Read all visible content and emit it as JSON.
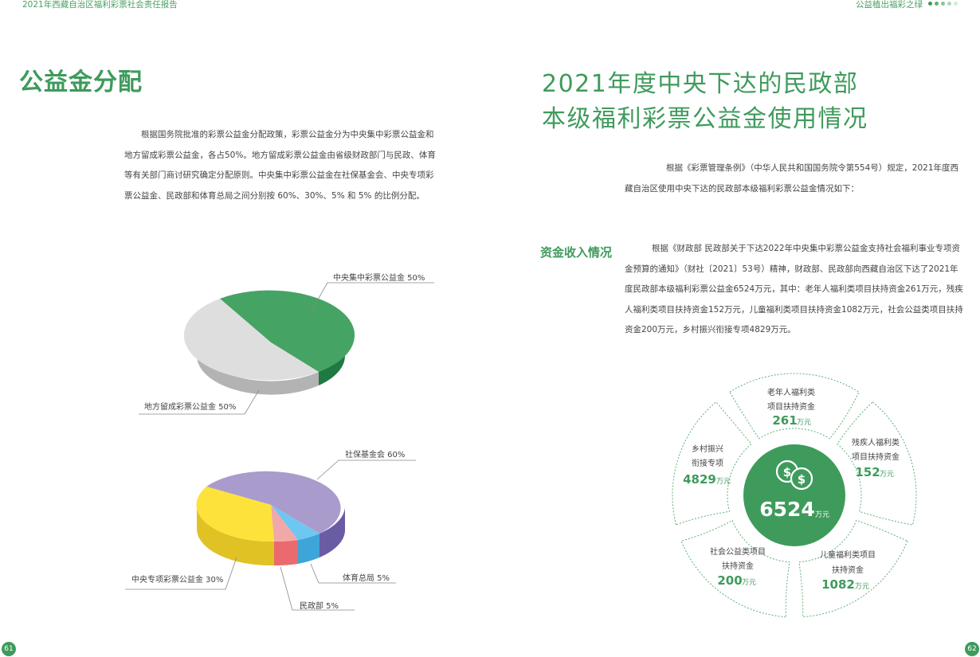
{
  "header": {
    "left_title": "2021年西藏自治区福利彩票社会责任报告",
    "right_title": "公益植出福彩之绿"
  },
  "left_page": {
    "title": "公益金分配",
    "paragraph": "根据国务院批准的彩票公益金分配政策，彩票公益金分为中央集中彩票公益金和地方留成彩票公益金，各占50%。地方留成彩票公益金由省级财政部门与民政、体育等有关部门商讨研究确定分配原则。中央集中彩票公益金在社保基金会、中央专项彩票公益金、民政部和体育总局之间分别按 60%、30%、5% 和 5% 的比例分配。",
    "page_number": "61"
  },
  "right_page": {
    "title_line1": "2021年度中央下达的民政部",
    "title_line2": "本级福利彩票公益金使用情况",
    "intro": "根据《彩票管理条例》（中华人民共和国国务院令第554号）规定，2021年度西藏自治区使用中央下达的民政部本级福利彩票公益金情况如下：",
    "section_label": "资金收入情况",
    "section_text": "根据《财政部  民政部关于下达2022年中央集中彩票公益金支持社会福利事业专项资金预算的通知》（财社〔2021〕53号）精神，财政部、民政部向西藏自治区下达了2021年度民政部本级福利彩票公益金6524万元，其中：老年人福利类项目扶持资金261万元，残疾人福利类项目扶持资金152万元，儿童福利类项目扶持资金1082万元，社会公益类项目扶持资金200万元，乡村振兴衔接专项4829万元。",
    "page_number": "62"
  },
  "chart_data": [
    {
      "type": "pie",
      "categories": [
        "中央集中彩票公益金",
        "地方留成彩票公益金"
      ],
      "values": [
        50,
        50
      ],
      "labels": [
        "中央集中彩票公益金 50%",
        "地方留成彩票公益金 50%"
      ],
      "colors": [
        "#45a464",
        "#dedede"
      ]
    },
    {
      "type": "pie",
      "categories": [
        "社保基金会",
        "体育总局",
        "民政部",
        "中央专项彩票公益金"
      ],
      "values": [
        60,
        5,
        5,
        30
      ],
      "labels": [
        "社保基金会 60%",
        "体育总局 5%",
        "民政部 5%",
        "中央专项彩票公益金 30%"
      ],
      "colors": [
        "#a99ccc",
        "#6ec7f0",
        "#f2a8a8",
        "#fde23c"
      ]
    },
    {
      "type": "pie",
      "center": {
        "value": "6524",
        "unit": "万元"
      },
      "unit": "万元",
      "categories": [
        "老年人福利类项目扶持资金",
        "残疾人福利类项目扶持资金",
        "儿童福利类项目扶持资金",
        "社会公益类项目扶持资金",
        "乡村振兴衔接专项"
      ],
      "values": [
        261,
        152,
        1082,
        200,
        4829
      ],
      "segments": [
        {
          "lines": [
            "老年人福利类",
            "项目扶持资金"
          ],
          "value": "261"
        },
        {
          "lines": [
            "残疾人福利类",
            "项目扶持资金"
          ],
          "value": "152"
        },
        {
          "lines": [
            "儿童福利类项目",
            "扶持资金"
          ],
          "value": "1082"
        },
        {
          "lines": [
            "社会公益类项目",
            "扶持资金"
          ],
          "value": "200"
        },
        {
          "lines": [
            "乡村振兴",
            "衔接专项"
          ],
          "value": "4829"
        }
      ]
    }
  ],
  "colors": {
    "brand_green": "#3e9b5c",
    "dark_green": "#1e7a42"
  },
  "icons": {
    "center_icon": "dollar-coins-icon"
  }
}
